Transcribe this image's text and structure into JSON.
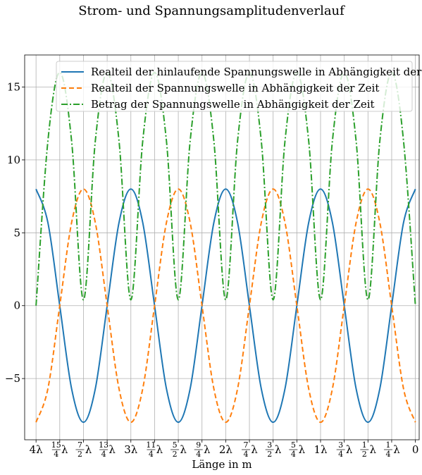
{
  "figure": {
    "suptitle": "Strom- und Spannungsamplitudenverlauf"
  },
  "chart_data": {
    "type": "line",
    "xlabel": "Länge in m",
    "ylabel": "",
    "x_unit": "wavelength λ",
    "x_domain_lambda": [
      4,
      0
    ],
    "xlim_lambda": [
      4.12,
      -0.04
    ],
    "ylim": [
      -9.2,
      17.2
    ],
    "grid": true,
    "legend_position": "top-right",
    "x_ticks": [
      {
        "value": 4,
        "label": "4λ"
      },
      {
        "value": 3.75,
        "num": "15",
        "den": "4"
      },
      {
        "value": 3.5,
        "num": "7",
        "den": "2"
      },
      {
        "value": 3.25,
        "num": "13",
        "den": "4"
      },
      {
        "value": 3,
        "label": "3λ"
      },
      {
        "value": 2.75,
        "num": "11",
        "den": "4"
      },
      {
        "value": 2.5,
        "num": "5",
        "den": "2"
      },
      {
        "value": 2.25,
        "num": "9",
        "den": "4"
      },
      {
        "value": 2,
        "label": "2λ"
      },
      {
        "value": 1.75,
        "num": "7",
        "den": "4"
      },
      {
        "value": 1.5,
        "num": "3",
        "den": "2"
      },
      {
        "value": 1.25,
        "num": "5",
        "den": "4"
      },
      {
        "value": 1,
        "label": "1λ"
      },
      {
        "value": 0.75,
        "num": "3",
        "den": "4"
      },
      {
        "value": 0.5,
        "num": "1",
        "den": "2"
      },
      {
        "value": 0.25,
        "num": "1",
        "den": "4"
      },
      {
        "value": 0,
        "label": "0"
      }
    ],
    "y_ticks": [
      {
        "value": -5,
        "label": "−5"
      },
      {
        "value": 0,
        "label": "0"
      },
      {
        "value": 5,
        "label": "5"
      },
      {
        "value": 10,
        "label": "10"
      },
      {
        "value": 15,
        "label": "15"
      }
    ],
    "x_lambda": [
      4,
      3.875,
      3.75,
      3.625,
      3.5,
      3.375,
      3.25,
      3.125,
      3,
      2.875,
      2.75,
      2.625,
      2.5,
      2.375,
      2.25,
      2.125,
      2,
      1.875,
      1.75,
      1.625,
      1.5,
      1.375,
      1.25,
      1.125,
      1,
      0.875,
      0.75,
      0.625,
      0.5,
      0.375,
      0.25,
      0.125,
      0
    ],
    "series": [
      {
        "name": "Realteil der hinlaufende Spannungswelle in Abhängigkeit der Zeit",
        "color": "#1f77b4",
        "style": "solid",
        "values": [
          8,
          5.7,
          0,
          -5.7,
          -8,
          -5.7,
          0,
          5.7,
          8,
          5.7,
          0,
          -5.7,
          -8,
          -5.7,
          0,
          5.7,
          8,
          5.7,
          0,
          -5.7,
          -8,
          -5.7,
          0,
          5.7,
          8,
          5.7,
          0,
          -5.7,
          -8,
          -5.7,
          0,
          5.7,
          8
        ]
      },
      {
        "name": "Realteil der Spannungswelle in Abhängigkeit der Zeit",
        "color": "#ff7f0e",
        "style": "dashed",
        "values": [
          -8,
          -5.7,
          0,
          5.7,
          8,
          5.7,
          0,
          -5.7,
          -8,
          -5.7,
          0,
          5.7,
          8,
          5.7,
          0,
          -5.7,
          -8,
          -5.7,
          0,
          5.7,
          8,
          5.7,
          0,
          -5.7,
          -8,
          -5.7,
          0,
          5.7,
          8,
          5.7,
          0,
          -5.7,
          -8
        ]
      },
      {
        "name": "Betrag der Spannungswelle in Abhängigkeit der Zeit",
        "color": "#2ca02c",
        "style": "dashdot",
        "values": [
          0,
          11.3,
          16,
          11.3,
          0.4,
          11.3,
          16,
          11.3,
          0.4,
          11.3,
          16,
          11.3,
          0.4,
          11.3,
          16,
          11.3,
          0.4,
          11.3,
          16,
          11.3,
          0.4,
          11.3,
          16,
          11.3,
          0.4,
          11.3,
          16,
          11.3,
          0.4,
          11.3,
          16,
          11.3,
          0
        ]
      }
    ]
  }
}
